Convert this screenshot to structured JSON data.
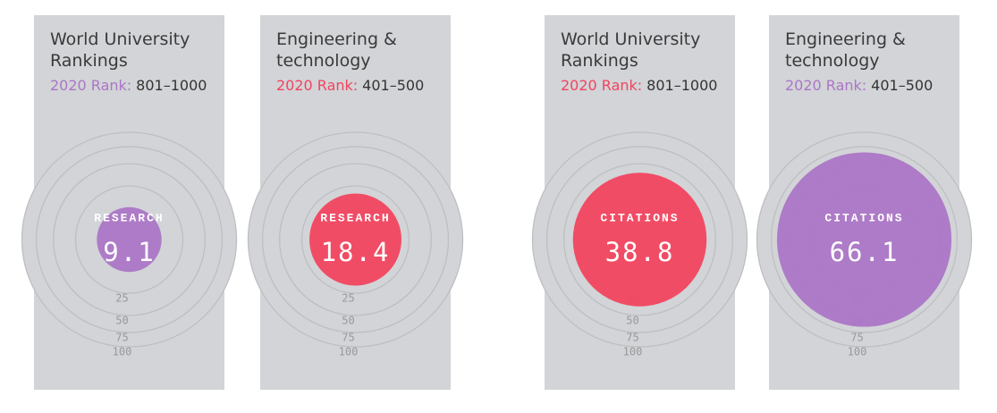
{
  "cards": [
    {
      "title_lines": [
        "World University",
        "Rankings"
      ],
      "rank_label": "2020 Rank:",
      "rank": "801–1000",
      "metric": "RESEARCH",
      "value": 9.1,
      "value_label": "9.1",
      "color": "#ab76c6"
    },
    {
      "title_lines": [
        "Engineering &",
        "technology"
      ],
      "rank_label": "2020 Rank:",
      "rank": "401–500",
      "metric": "RESEARCH",
      "value": 18.4,
      "value_label": "18.4",
      "color": "#f2445f"
    },
    {
      "title_lines": [
        "World University",
        "Rankings"
      ],
      "rank_label": "2020 Rank:",
      "rank": "801–1000",
      "metric": "CITATIONS",
      "value": 38.8,
      "value_label": "38.8",
      "color": "#f2445f"
    },
    {
      "title_lines": [
        "Engineering &",
        "technology"
      ],
      "rank_label": "2020 Rank:",
      "rank": "401–500",
      "metric": "CITATIONS",
      "value": 66.1,
      "value_label": "66.1",
      "color": "#ab76c6"
    }
  ],
  "scale": {
    "max": 100,
    "ticks": [
      25,
      50,
      75,
      100
    ]
  }
}
